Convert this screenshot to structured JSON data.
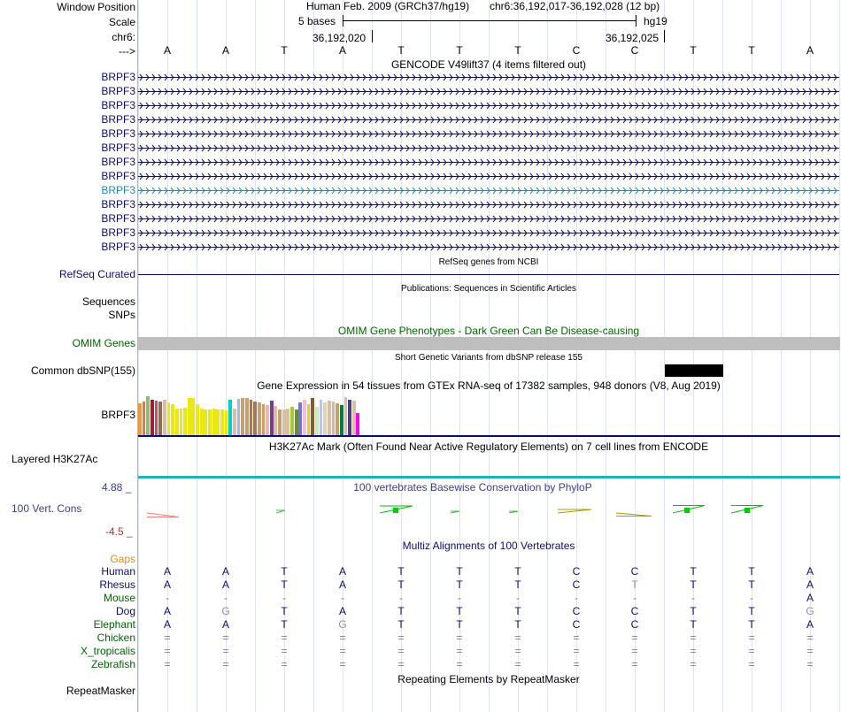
{
  "header": {
    "window_position_label": "Window Position",
    "scale_label": "Scale",
    "chrom_label": "chr6:",
    "arrow_label": "--->",
    "assembly": "Human Feb. 2009 (GRCh37/hg19)",
    "position": "chr6:36,192,017-36,192,028 (12 bp)",
    "scale_text": "5 bases",
    "db": "hg19",
    "coord1": "36,192,020",
    "coord2": "36,192,025"
  },
  "bases": [
    "A",
    "A",
    "T",
    "A",
    "T",
    "T",
    "T",
    "C",
    "C",
    "T",
    "T",
    "A"
  ],
  "gencode": {
    "title": "GENCODE V49lift37 (4 items filtered out)",
    "rows": [
      {
        "label": "BRPF3",
        "color": "#0c0c78"
      },
      {
        "label": "BRPF3",
        "color": "#0c0c78"
      },
      {
        "label": "BRPF3",
        "color": "#0c0c78"
      },
      {
        "label": "BRPF3",
        "color": "#0c0c78"
      },
      {
        "label": "BRPF3",
        "color": "#0c0c78"
      },
      {
        "label": "BRPF3",
        "color": "#0c0c78"
      },
      {
        "label": "BRPF3",
        "color": "#0c0c78"
      },
      {
        "label": "BRPF3",
        "color": "#0c0c78"
      },
      {
        "label": "BRPF3",
        "color": "#1e8cb4"
      },
      {
        "label": "BRPF3",
        "color": "#0c0c78"
      },
      {
        "label": "BRPF3",
        "color": "#0c0c78"
      },
      {
        "label": "BRPF3",
        "color": "#0c0c78"
      },
      {
        "label": "BRPF3",
        "color": "#0c0c78"
      }
    ]
  },
  "refseq": {
    "title": "RefSeq genes from NCBI",
    "label": "RefSeq Curated",
    "color": "#0c0c78"
  },
  "pubs": {
    "title": "Publications: Sequences in Scientific Articles",
    "label": "Sequences"
  },
  "snps_label": "SNPs",
  "omim": {
    "title": "OMIM Gene Phenotypes - Dark Green Can Be Disease-causing",
    "label": "OMIM Genes",
    "color": "#006400"
  },
  "dbsnp": {
    "title": "Short Genetic Variants from dbSNP release 155",
    "label": "Common dbSNP(155)"
  },
  "gtex": {
    "title": "Gene Expression in 54 tissues from GTEx RNA-seq of 17382 samples, 948 donors (V8, Aug 2019)",
    "label": "BRPF3",
    "levels": [
      0.78,
      0.82,
      0.95,
      0.86,
      0.84,
      0.82,
      0.86,
      0.8,
      0.75,
      0.65,
      0.66,
      0.68,
      0.92,
      0.92,
      0.75,
      0.65,
      0.64,
      0.64,
      0.66,
      0.64,
      0.62,
      0.6,
      0.86,
      0.66,
      0.9,
      0.92,
      0.92,
      0.86,
      0.82,
      0.8,
      0.76,
      0.74,
      0.84,
      0.72,
      0.64,
      0.64,
      0.66,
      0.7,
      0.64,
      0.8,
      0.86,
      0.75,
      0.92,
      0.7,
      0.86,
      0.8,
      0.84,
      0.82,
      0.78,
      0.74,
      0.94,
      0.86,
      0.85,
      0.55
    ],
    "colors": [
      "#f09a37",
      "#e8782b",
      "#8fbc76",
      "#a11b3b",
      "#c85060",
      "#9a6850",
      "#d4c0a8",
      "#eae814",
      "#eae814",
      "#eae814",
      "#eae814",
      "#eae814",
      "#eae814",
      "#eae814",
      "#eae814",
      "#eae814",
      "#eae814",
      "#eae814",
      "#eae814",
      "#eae814",
      "#eae814",
      "#eae814",
      "#00ced1",
      "#d8c0a0",
      "#a8b8e0",
      "#c8a070",
      "#c8a070",
      "#a07858",
      "#a07858",
      "#c8a070",
      "#c8a070",
      "#e8b8b0",
      "#7a3c8c",
      "#d8c0a0",
      "#c8a070",
      "#d8c0a0",
      "#d8c0a0",
      "#a8c838",
      "#6b8e23",
      "#7070f0",
      "#f0c0d0",
      "#f0c830",
      "#8b5a2b",
      "#c8e8c0",
      "#b0c8f0",
      "#e0d0c0",
      "#d8c0a0",
      "#d8b898",
      "#c8a070",
      "#008040",
      "#d8c0a0",
      "#483d8b",
      "#d8c0a0",
      "#ff00ff"
    ]
  },
  "h3k27ac": {
    "title": "H3K27Ac Mark (Often Found Near Active Regulatory Elements) on 7 cell lines from ENCODE",
    "label": "Layered H3K27Ac"
  },
  "phylop": {
    "title": "100 vertebrates Basewise Conservation by PhyloP",
    "label": "100 Vert. Cons",
    "max": "4.88 _",
    "min": "-4.5 _"
  },
  "multiz": {
    "title": "Multiz Alignments of 100 Vertebrates",
    "gaps_label": "Gaps",
    "rows": [
      {
        "label": "Human",
        "color": "#0c0c78",
        "bases": [
          "A",
          "A",
          "T",
          "A",
          "T",
          "T",
          "T",
          "C",
          "C",
          "T",
          "T",
          "A"
        ]
      },
      {
        "label": "Rhesus",
        "color": "#0c0c78",
        "bases": [
          "A",
          "A",
          "T",
          "A",
          "T",
          "T",
          "T",
          "C",
          "T",
          "T",
          "T",
          "A"
        ]
      },
      {
        "label": "Mouse",
        "color": "#006400",
        "bases": [
          "-",
          "-",
          "-",
          "-",
          "-",
          "-",
          "-",
          "-",
          "-",
          "-",
          "-",
          "A"
        ]
      },
      {
        "label": "Dog",
        "color": "#0c0c78",
        "bases": [
          "A",
          "G",
          "T",
          "A",
          "T",
          "T",
          "T",
          "C",
          "C",
          "T",
          "T",
          "G"
        ]
      },
      {
        "label": "Elephant",
        "color": "#006400",
        "bases": [
          "A",
          "A",
          "T",
          "G",
          "T",
          "T",
          "T",
          "C",
          "C",
          "T",
          "T",
          "A"
        ]
      },
      {
        "label": "Chicken",
        "color": "#006400",
        "bases": [
          "=",
          "=",
          "=",
          "=",
          "=",
          "=",
          "=",
          "=",
          "=",
          "=",
          "=",
          "="
        ]
      },
      {
        "label": "X_tropicalis",
        "color": "#006400",
        "bases": [
          "=",
          "=",
          "=",
          "=",
          "=",
          "=",
          "=",
          "=",
          "=",
          "=",
          "=",
          "="
        ]
      },
      {
        "label": "Zebrafish",
        "color": "#006400",
        "bases": [
          "=",
          "=",
          "=",
          "=",
          "=",
          "=",
          "=",
          "=",
          "=",
          "=",
          "=",
          "="
        ]
      }
    ]
  },
  "repeat": {
    "title": "Repeating Elements by RepeatMasker",
    "label": "RepeatMasker"
  }
}
